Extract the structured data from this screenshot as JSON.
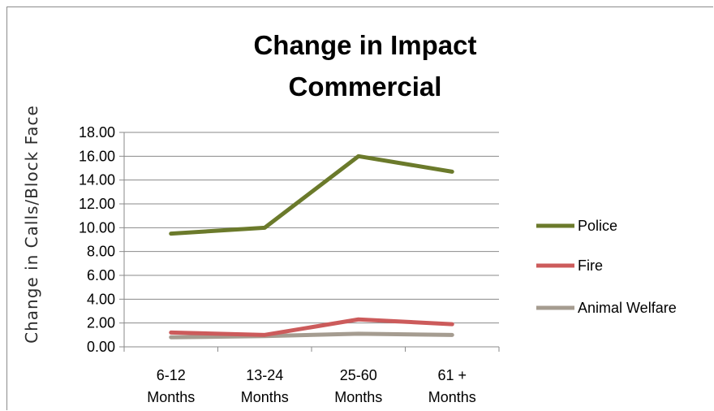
{
  "chart_data": {
    "type": "line",
    "title_lines": [
      "Change in Impact",
      "Commercial"
    ],
    "ylabel": "Change in Calls/Block Face",
    "xlabel": "",
    "categories": [
      [
        "6-12",
        "Months"
      ],
      [
        "13-24",
        "Months"
      ],
      [
        "25-60",
        "Months"
      ],
      [
        "61 +",
        "Months"
      ]
    ],
    "ylim": [
      0,
      18
    ],
    "yticks": [
      "0.00",
      "2.00",
      "4.00",
      "6.00",
      "8.00",
      "10.00",
      "12.00",
      "14.00",
      "16.00",
      "18.00"
    ],
    "grid": true,
    "legend_position": "right",
    "series": [
      {
        "name": "Police",
        "color": "#6b7a2b",
        "values": [
          9.5,
          10.0,
          16.0,
          14.7
        ]
      },
      {
        "name": "Fire",
        "color": "#cc5b5b",
        "values": [
          1.2,
          1.0,
          2.3,
          1.9
        ]
      },
      {
        "name": "Animal Welfare",
        "color": "#a59c90",
        "values": [
          0.8,
          0.9,
          1.1,
          1.0
        ]
      }
    ]
  }
}
